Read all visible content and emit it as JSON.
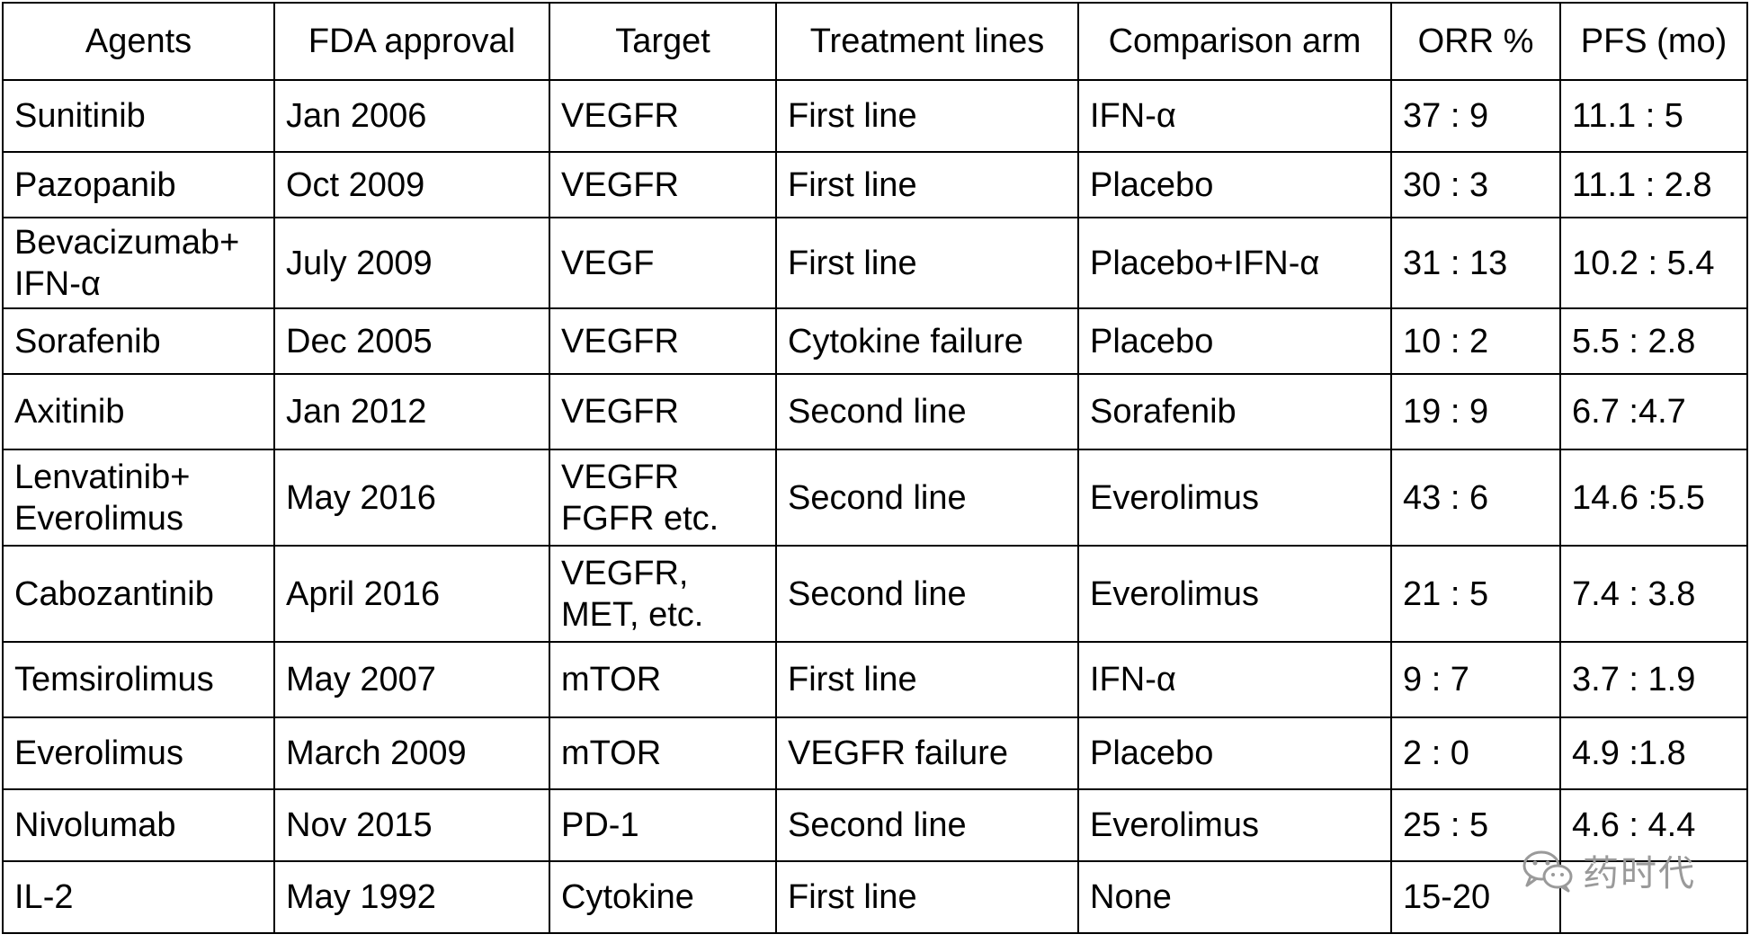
{
  "table": {
    "headers": [
      "Agents",
      "FDA approval",
      "Target",
      "Treatment lines",
      "Comparison arm",
      "ORR %",
      "PFS (mo)"
    ],
    "rows": [
      {
        "agent": [
          "Sunitinib"
        ],
        "approval": "Jan 2006",
        "target": [
          "VEGFR"
        ],
        "line": "First line",
        "comparison": "IFN-α",
        "orr": "37 : 9",
        "pfs": "11.1 :  5"
      },
      {
        "agent": [
          "Pazopanib"
        ],
        "approval": "Oct 2009",
        "target": [
          "VEGFR"
        ],
        "line": "First line",
        "comparison": "Placebo",
        "orr": "30 : 3",
        "pfs": "11.1 : 2.8"
      },
      {
        "agent": [
          "Bevacizumab+",
          "IFN-α"
        ],
        "approval": "July 2009",
        "target": [
          "VEGF"
        ],
        "line": "First line",
        "comparison": "Placebo+IFN-α",
        "orr": "31 : 13",
        "pfs": "10.2 : 5.4"
      },
      {
        "agent": [
          "Sorafenib"
        ],
        "approval": "Dec 2005",
        "target": [
          "VEGFR"
        ],
        "line": "Cytokine failure",
        "comparison": "Placebo",
        "orr": "10 : 2",
        "pfs": "5.5 : 2.8"
      },
      {
        "agent": [
          "Axitinib"
        ],
        "approval": "Jan 2012",
        "target": [
          "VEGFR"
        ],
        "line": "Second line",
        "comparison": "Sorafenib",
        "orr": "19 : 9",
        "pfs": "6.7 :4.7"
      },
      {
        "agent": [
          "Lenvatinib+",
          "Everolimus"
        ],
        "approval": "May 2016",
        "target": [
          "VEGFR",
          "FGFR etc."
        ],
        "line": "Second line",
        "comparison": "Everolimus",
        "orr": "43 : 6",
        "pfs": "14.6 :5.5"
      },
      {
        "agent": [
          "Cabozantinib"
        ],
        "approval": "April 2016",
        "target": [
          "VEGFR,",
          "MET, etc."
        ],
        "line": "Second line",
        "comparison": "Everolimus",
        "orr": "21 : 5",
        "pfs": "7.4 : 3.8"
      },
      {
        "agent": [
          "Temsirolimus"
        ],
        "approval": "May 2007",
        "target": [
          "mTOR"
        ],
        "line": "First line",
        "comparison": "IFN-α",
        "orr": "9 : 7",
        "pfs": "3.7 : 1.9"
      },
      {
        "agent": [
          "Everolimus"
        ],
        "approval": "March 2009",
        "target": [
          "mTOR"
        ],
        "line": "VEGFR failure",
        "comparison": "Placebo",
        "orr": "2 : 0",
        "pfs": "4.9 :1.8"
      },
      {
        "agent": [
          "Nivolumab"
        ],
        "approval": "Nov 2015",
        "target": [
          "PD-1"
        ],
        "line": "Second line",
        "comparison": "Everolimus",
        "orr": "25 : 5",
        "pfs": "4.6 : 4.4"
      },
      {
        "agent": [
          "IL-2"
        ],
        "approval": "May 1992",
        "target": [
          "Cytokine"
        ],
        "line": "First line",
        "comparison": "None",
        "orr": "15-20",
        "pfs": ""
      }
    ]
  },
  "watermark": {
    "icon": "wechat-icon",
    "text": "药时代",
    "color": "#9a9a9a"
  }
}
